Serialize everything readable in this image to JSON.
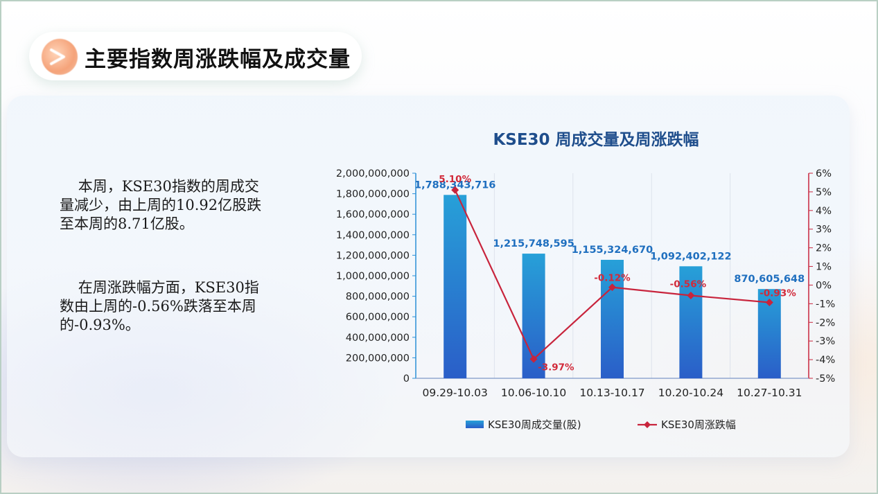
{
  "page": {
    "title": "主要指数周涨跌幅及成交量",
    "paragraph1_lines": [
      "    本周，KSE30指数的周成交",
      "量减少，由上周的10.92亿股跌",
      "至本周的8.71亿股。"
    ],
    "paragraph2_lines": [
      "    在周涨跌幅方面，KSE30指",
      "数由上周的-0.56%跌落至本周",
      "的-0.93%。"
    ]
  },
  "colors": {
    "bar_top": "#27a0d8",
    "bar_bottom": "#2a5ec8",
    "line": "#c8243c",
    "value_label": "#1f6fbf",
    "pct_label": "#d12a3a",
    "left_axis": "#2a8fd6",
    "right_axis": "#c8243c"
  },
  "chart_data": {
    "type": "bar",
    "title": "KSE30 周成交量及周涨跌幅",
    "categories": [
      "09.29-10.03",
      "10.06-10.10",
      "10.13-10.17",
      "10.20-10.24",
      "10.27-10.31"
    ],
    "series": [
      {
        "name": "KSE30周成交量(股)",
        "type": "bar",
        "axis": "left",
        "values": [
          1788343716,
          1215748595,
          1155324670,
          1092402122,
          870605648
        ],
        "labels": [
          "1,788,343,716",
          "1,215,748,595",
          "1,155,324,670",
          "1,092,402,122",
          "870,605,648"
        ]
      },
      {
        "name": "KSE30周涨跌幅",
        "type": "line",
        "axis": "right",
        "values": [
          5.1,
          -3.97,
          -0.12,
          -0.56,
          -0.93
        ],
        "labels": [
          "5.10%",
          "-3.97%",
          "-0.12%",
          "-0.56%",
          "-0.93%"
        ]
      }
    ],
    "y_left": {
      "range": [
        0,
        2000000000
      ],
      "ticks": [
        0,
        200000000,
        400000000,
        600000000,
        800000000,
        1000000000,
        1200000000,
        1400000000,
        1600000000,
        1800000000,
        2000000000
      ],
      "tick_labels": [
        "0",
        "200,000,000",
        "400,000,000",
        "600,000,000",
        "800,000,000",
        "1,000,000,000",
        "1,200,000,000",
        "1,400,000,000",
        "1,600,000,000",
        "1,800,000,000",
        "2,000,000,000"
      ]
    },
    "y_right": {
      "range": [
        -5,
        6
      ],
      "ticks": [
        6,
        5,
        4,
        3,
        2,
        1,
        0,
        -1,
        -2,
        -3,
        -4,
        -5
      ],
      "tick_labels": [
        "6%",
        "5%",
        "4%",
        "3%",
        "2%",
        "1%",
        "0%",
        "-1%",
        "-2%",
        "-3%",
        "-4%",
        "-5%"
      ]
    },
    "grid": "vertical",
    "legend_position": "bottom"
  }
}
